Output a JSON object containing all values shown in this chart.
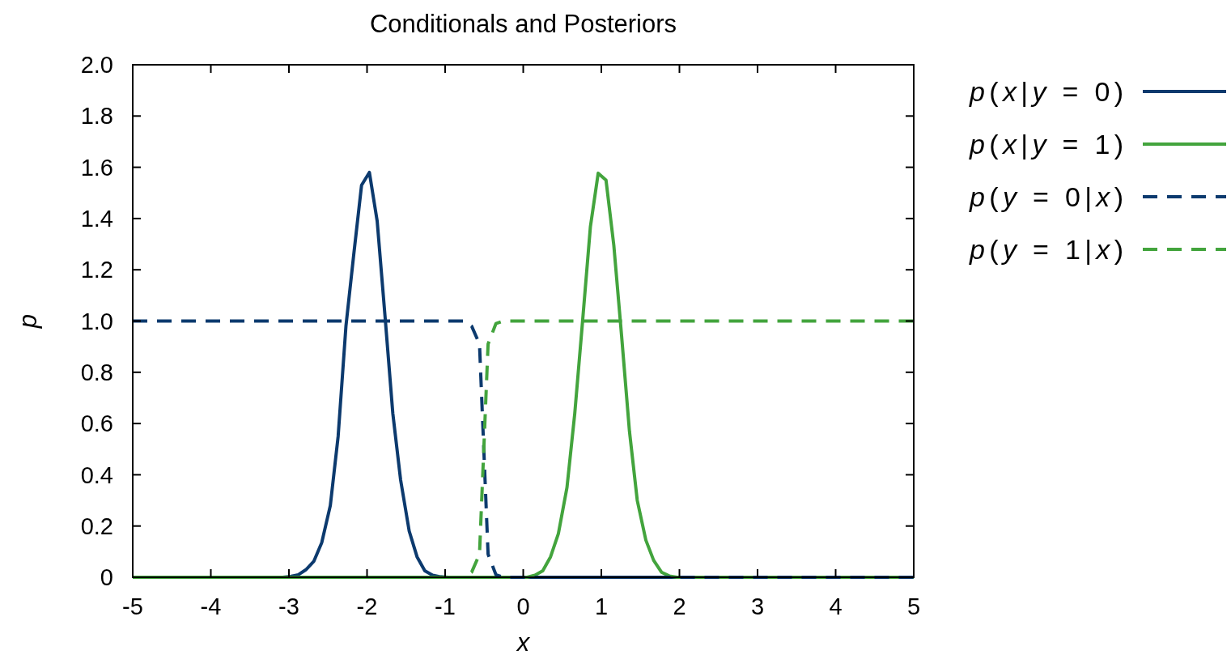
{
  "chart_data": {
    "type": "line",
    "title": "Conditionals and Posteriors",
    "xlabel": "x",
    "ylabel": "p",
    "xlim": [
      -5,
      5
    ],
    "xticks": [
      -5,
      -4,
      -3,
      -2,
      -1,
      0,
      1,
      2,
      3,
      4,
      5
    ],
    "ylim": [
      0,
      2
    ],
    "yticks": [
      0,
      0.2,
      0.4,
      0.6,
      0.8,
      {
        "value": 1,
        "label": "1.0"
      },
      1.2,
      1.4,
      1.6,
      1.8,
      {
        "value": 2,
        "label": "2.0"
      }
    ],
    "grid": false,
    "legend": "top right",
    "marker": "none",
    "series": [
      {
        "name": "p(x|y = 0)",
        "color": "#0c3a6e",
        "line_style": "solid",
        "x": [
          -5,
          -3.08,
          -2.98,
          -2.88,
          -2.78,
          -2.68,
          -2.58,
          -2.47,
          -2.37,
          -2.27,
          -2.17,
          -2.07,
          -1.97,
          -1.87,
          -1.77,
          -1.67,
          -1.57,
          -1.46,
          -1.36,
          -1.26,
          -1.16,
          -1.06,
          -0.96,
          5
        ],
        "values": [
          0,
          0,
          0.003,
          0.01,
          0.03,
          0.063,
          0.135,
          0.28,
          0.55,
          0.98,
          1.26,
          1.53,
          1.58,
          1.39,
          1.02,
          0.64,
          0.38,
          0.18,
          0.08,
          0.025,
          0.008,
          0.002,
          0,
          0
        ]
      },
      {
        "name": "p(x|y = 1)",
        "color": "#43a43d",
        "line_style": "solid",
        "x": [
          -5,
          0.05,
          0.15,
          0.25,
          0.35,
          0.45,
          0.56,
          0.66,
          0.76,
          0.86,
          0.96,
          1.06,
          1.16,
          1.26,
          1.36,
          1.46,
          1.57,
          1.67,
          1.77,
          1.87,
          1.97,
          5
        ],
        "values": [
          0,
          0,
          0.008,
          0.025,
          0.08,
          0.17,
          0.35,
          0.64,
          1.0,
          1.368,
          1.577,
          1.55,
          1.295,
          0.94,
          0.57,
          0.3,
          0.145,
          0.066,
          0.02,
          0.005,
          0,
          0
        ]
      },
      {
        "name": "p(y = 0|x)",
        "color": "#0c3a6e",
        "line_style": "dashed",
        "x": [
          -5,
          -0.76,
          -0.66,
          -0.56,
          -0.45,
          -0.35,
          -0.25,
          5
        ],
        "values": [
          1,
          1,
          0.98,
          0.91,
          0.09,
          0.01,
          0,
          0
        ]
      },
      {
        "name": "p(y = 1|x)",
        "color": "#43a43d",
        "line_style": "dashed",
        "x": [
          -5,
          -0.76,
          -0.66,
          -0.56,
          -0.45,
          -0.35,
          -0.25,
          5
        ],
        "values": [
          0,
          0,
          0.02,
          0.09,
          0.91,
          0.99,
          1,
          1
        ]
      }
    ]
  }
}
